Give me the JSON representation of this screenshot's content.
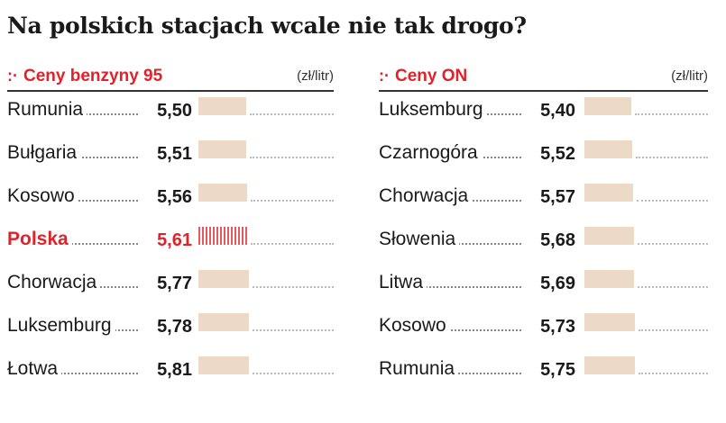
{
  "title": "Na polskich stacjach wcale nie tak drogo?",
  "colors": {
    "accent": "#e0222a",
    "bar": "#ecd9c6",
    "text": "#1a1a1a"
  },
  "chart_data": [
    {
      "type": "bar",
      "title": "Ceny benzyny 95",
      "unit": "(zł/litr)",
      "categories": [
        "Rumunia",
        "Bułgaria",
        "Kosowo",
        "Polska",
        "Chorwacja",
        "Luksemburg",
        "Łotwa"
      ],
      "values": [
        5.5,
        5.51,
        5.56,
        5.61,
        5.77,
        5.78,
        5.81
      ],
      "labels": [
        "5,50",
        "5,51",
        "5,56",
        "5,61",
        "5,77",
        "5,78",
        "5,81"
      ],
      "highlight": "Polska",
      "xlim": [
        0,
        8
      ]
    },
    {
      "type": "bar",
      "title": "Ceny ON",
      "unit": "(zł/litr)",
      "categories": [
        "Luksemburg",
        "Czarnogóra",
        "Chorwacja",
        "Słowenia",
        "Litwa",
        "Kosowo",
        "Rumunia"
      ],
      "values": [
        5.4,
        5.52,
        5.57,
        5.68,
        5.69,
        5.73,
        5.75
      ],
      "labels": [
        "5,40",
        "5,52",
        "5,57",
        "5,68",
        "5,69",
        "5,73",
        "5,75"
      ],
      "highlight": "",
      "xlim": [
        0,
        8
      ]
    }
  ]
}
